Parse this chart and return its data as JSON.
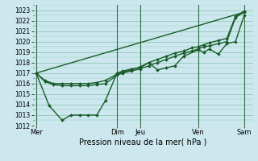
{
  "xlabel": "Pression niveau de la mer( hPa )",
  "bg_color": "#cce8ee",
  "grid_color": "#99ccbb",
  "line_color": "#1a5c2a",
  "ylim": [
    1012,
    1023.5
  ],
  "yticks": [
    1012,
    1013,
    1014,
    1015,
    1016,
    1017,
    1018,
    1019,
    1020,
    1021,
    1022,
    1023
  ],
  "day_labels": [
    "Mer",
    "Dim",
    "Jeu",
    "Ven",
    "Sam"
  ],
  "day_positions": [
    0.0,
    9.333,
    12.0,
    18.667,
    24.0
  ],
  "xlim": [
    -0.3,
    25.0
  ],
  "series": [
    {
      "x": [
        0,
        1.5,
        3.0,
        4.0,
        5.0,
        6.0,
        7.0,
        8.0,
        9.33,
        10.0,
        11.0,
        12.0,
        13.0,
        14.0,
        15.0,
        16.0,
        17.0,
        18.67,
        19.33,
        20.0,
        21.0,
        22.0,
        23.0,
        24.0
      ],
      "y": [
        1017.0,
        1013.9,
        1012.5,
        1013.0,
        1013.0,
        1013.0,
        1013.0,
        1014.4,
        1017.0,
        1017.2,
        1017.4,
        1017.5,
        1018.0,
        1017.3,
        1017.5,
        1017.7,
        1018.6,
        1019.2,
        1019.0,
        1019.3,
        1018.8,
        1019.8,
        1020.0,
        1022.5
      ],
      "lw": 1.0
    },
    {
      "x": [
        0,
        24.0
      ],
      "y": [
        1017.0,
        1022.8
      ],
      "lw": 1.0
    },
    {
      "x": [
        0,
        1.0,
        2.0,
        3.0,
        4.0,
        5.0,
        6.0,
        7.0,
        8.0,
        9.33,
        10.0,
        11.0,
        12.0,
        13.0,
        14.0,
        15.0,
        16.0,
        17.0,
        18.0,
        18.67,
        19.33,
        20.0,
        21.0,
        22.0,
        23.0,
        24.0
      ],
      "y": [
        1017.0,
        1016.2,
        1015.9,
        1015.8,
        1015.8,
        1015.8,
        1015.8,
        1015.9,
        1016.0,
        1016.8,
        1017.0,
        1017.2,
        1017.4,
        1017.7,
        1018.0,
        1018.3,
        1018.6,
        1018.9,
        1019.1,
        1019.3,
        1019.5,
        1019.6,
        1019.8,
        1020.0,
        1022.3,
        1022.8
      ],
      "lw": 1.0
    },
    {
      "x": [
        0,
        1.0,
        2.0,
        3.0,
        4.0,
        5.0,
        6.0,
        7.0,
        8.0,
        9.33,
        10.0,
        11.0,
        12.0,
        13.0,
        14.0,
        15.0,
        16.0,
        17.0,
        18.0,
        18.67,
        19.33,
        20.0,
        21.0,
        22.0,
        23.0,
        24.0
      ],
      "y": [
        1017.0,
        1016.3,
        1016.0,
        1016.0,
        1016.0,
        1016.0,
        1016.0,
        1016.1,
        1016.3,
        1016.9,
        1017.1,
        1017.3,
        1017.6,
        1018.0,
        1018.3,
        1018.6,
        1018.9,
        1019.1,
        1019.4,
        1019.5,
        1019.7,
        1019.9,
        1020.1,
        1020.3,
        1022.4,
        1022.9
      ],
      "lw": 1.0
    }
  ],
  "marker_series": [
    {
      "x": [
        0,
        1.5,
        3.0,
        4.0,
        5.0,
        6.0,
        7.0,
        8.0,
        9.33,
        10.0,
        11.0,
        12.0,
        13.0,
        14.0,
        15.0,
        16.0,
        17.0,
        18.67,
        19.33,
        20.0,
        21.0,
        22.0,
        23.0,
        24.0
      ],
      "y": [
        1017.0,
        1013.9,
        1012.5,
        1013.0,
        1013.0,
        1013.0,
        1013.0,
        1014.4,
        1017.0,
        1017.2,
        1017.4,
        1017.5,
        1018.0,
        1017.3,
        1017.5,
        1017.7,
        1018.6,
        1019.2,
        1019.0,
        1019.3,
        1018.8,
        1019.8,
        1020.0,
        1022.5
      ]
    },
    {
      "x": [
        0,
        1.0,
        2.0,
        3.0,
        4.0,
        5.0,
        6.0,
        7.0,
        8.0,
        9.33,
        10.0,
        11.0,
        12.0,
        13.0,
        14.0,
        15.0,
        16.0,
        17.0,
        18.0,
        18.67,
        19.33,
        20.0,
        21.0,
        22.0,
        23.0,
        24.0
      ],
      "y": [
        1017.0,
        1016.2,
        1015.9,
        1015.8,
        1015.8,
        1015.8,
        1015.8,
        1015.9,
        1016.0,
        1016.8,
        1017.0,
        1017.2,
        1017.4,
        1017.7,
        1018.0,
        1018.3,
        1018.6,
        1018.9,
        1019.1,
        1019.3,
        1019.5,
        1019.6,
        1019.8,
        1020.0,
        1022.3,
        1022.8
      ]
    },
    {
      "x": [
        0,
        1.0,
        2.0,
        3.0,
        4.0,
        5.0,
        6.0,
        7.0,
        8.0,
        9.33,
        10.0,
        11.0,
        12.0,
        13.0,
        14.0,
        15.0,
        16.0,
        17.0,
        18.0,
        18.67,
        19.33,
        20.0,
        21.0,
        22.0,
        23.0,
        24.0
      ],
      "y": [
        1017.0,
        1016.3,
        1016.0,
        1016.0,
        1016.0,
        1016.0,
        1016.0,
        1016.1,
        1016.3,
        1016.9,
        1017.1,
        1017.3,
        1017.6,
        1018.0,
        1018.3,
        1018.6,
        1018.9,
        1019.1,
        1019.4,
        1019.5,
        1019.7,
        1019.9,
        1020.1,
        1020.3,
        1022.4,
        1022.9
      ]
    }
  ]
}
